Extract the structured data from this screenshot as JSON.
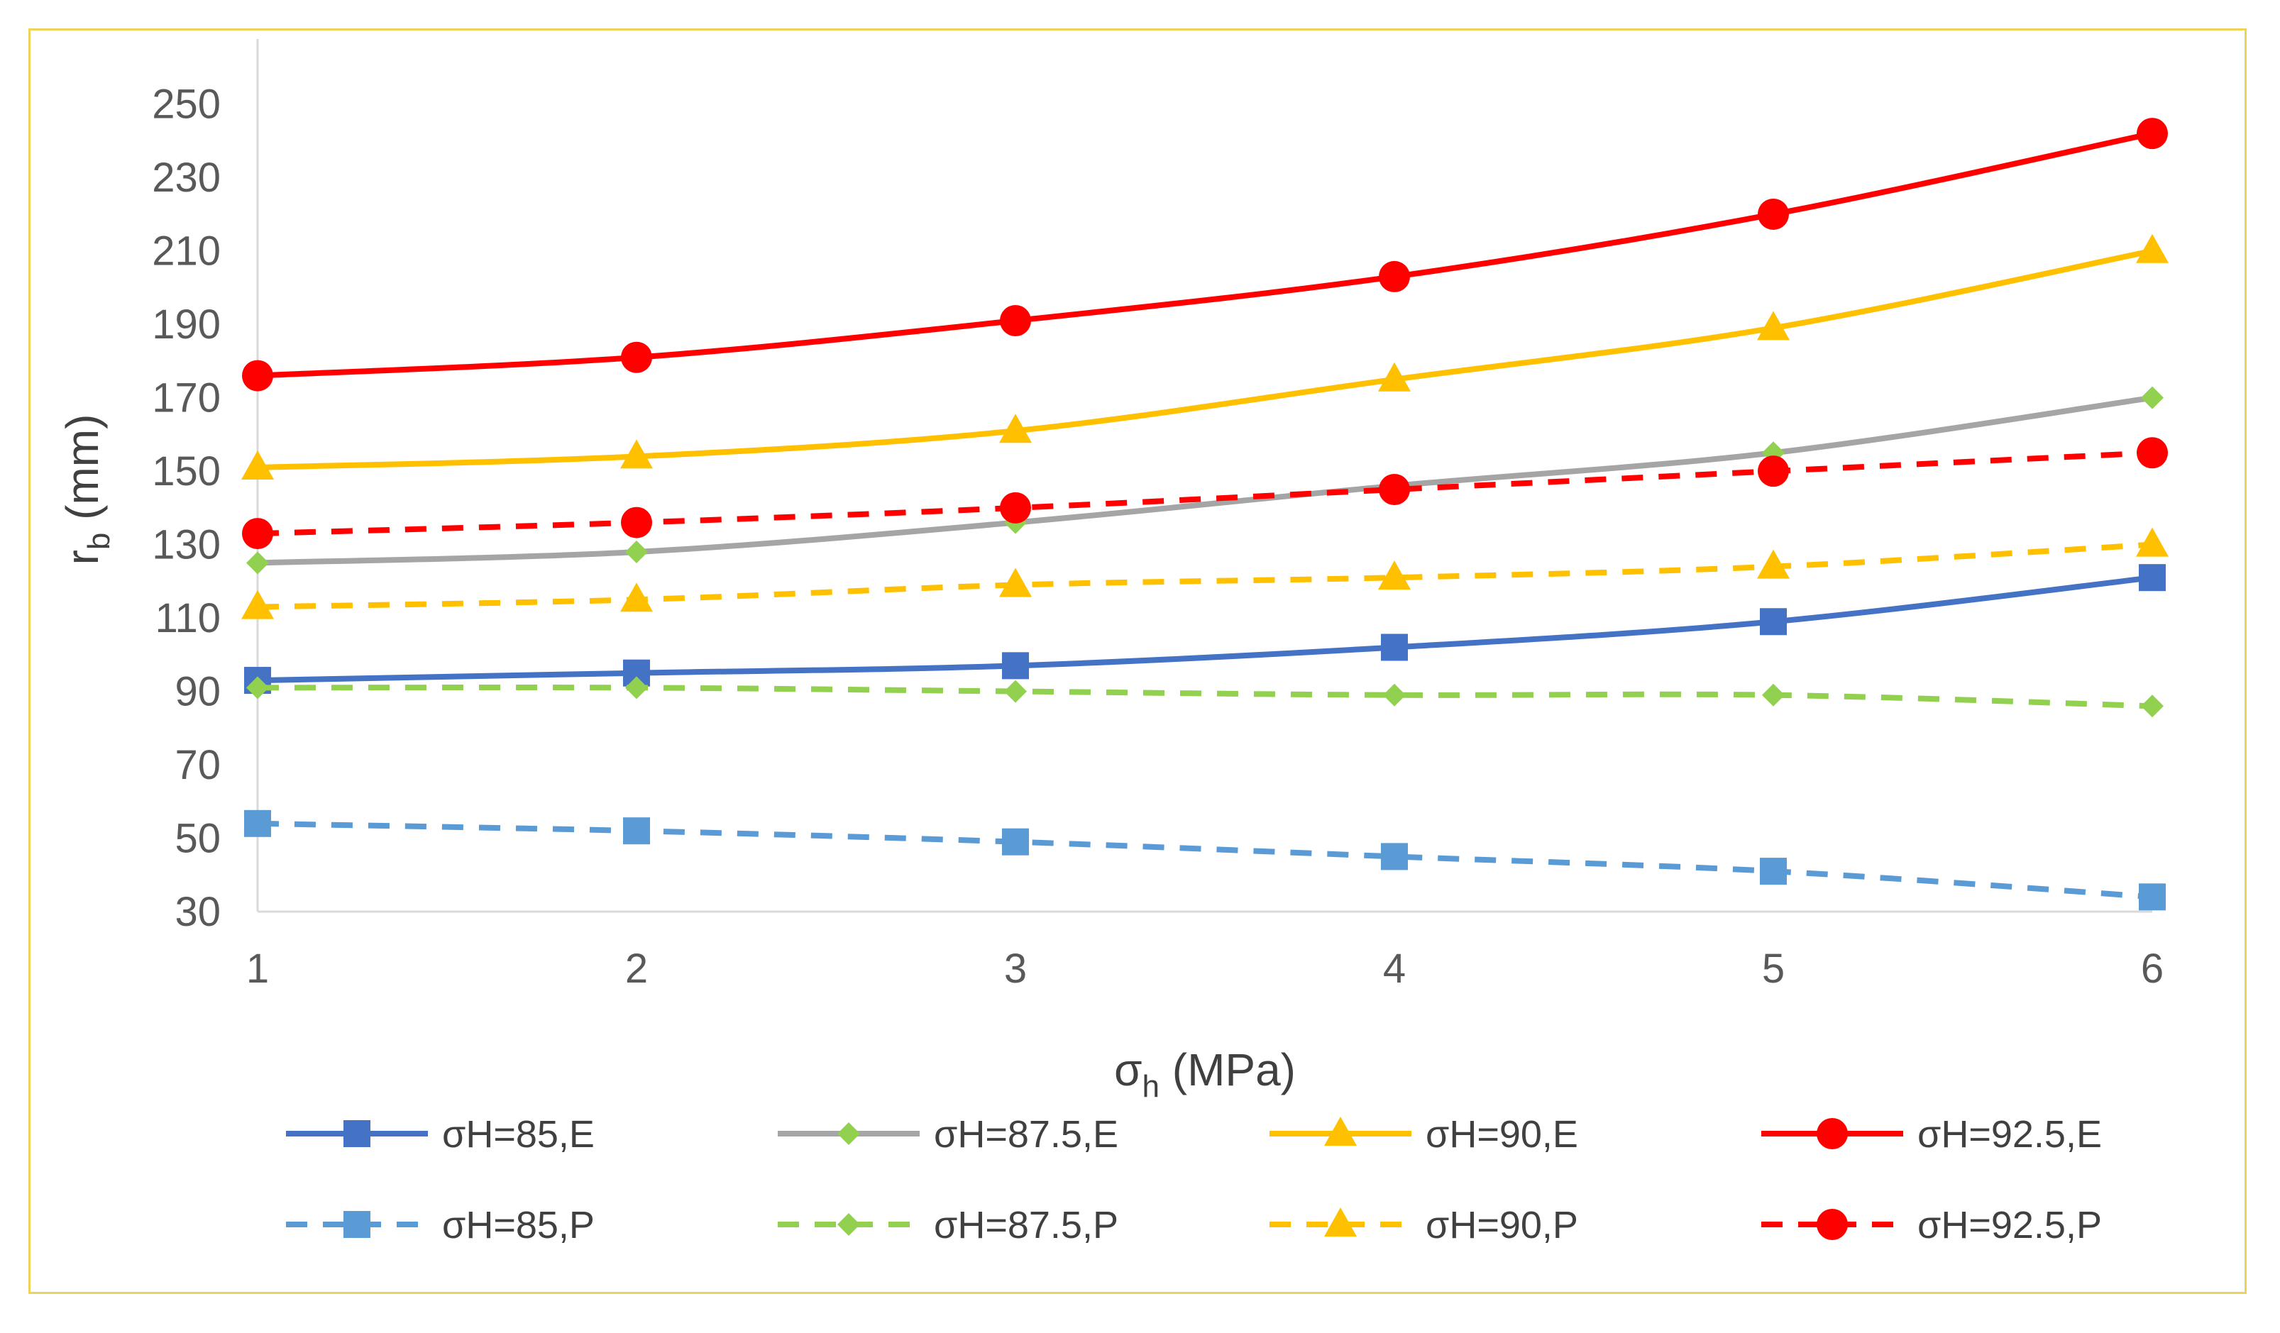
{
  "chart_data": {
    "type": "line",
    "title": "",
    "xlabel": {
      "main": "σ",
      "sub": "h",
      "unit": " (MPa)"
    },
    "ylabel": {
      "main": "r",
      "sub": "b",
      "unit": " (mm)"
    },
    "x": [
      1,
      2,
      3,
      4,
      5,
      6
    ],
    "xlim": [
      1,
      6
    ],
    "ylim": [
      30,
      260
    ],
    "yticks": [
      30,
      50,
      70,
      90,
      110,
      130,
      150,
      170,
      190,
      210,
      230,
      250
    ],
    "grid": false,
    "legend_position": "bottom",
    "series": [
      {
        "name": "σH=85,E",
        "values": [
          93,
          95,
          97,
          102,
          109,
          121
        ],
        "color": "#4472c4",
        "dash": "solid",
        "marker": "square"
      },
      {
        "name": "σH=87.5,E",
        "values": [
          125,
          128,
          136,
          146,
          155,
          170
        ],
        "color": "#a5a5a5",
        "dash": "solid",
        "marker": "diamond",
        "marker_color": "#92d050"
      },
      {
        "name": "σH=90,E",
        "values": [
          151,
          154,
          161,
          175,
          189,
          210
        ],
        "color": "#ffc000",
        "dash": "solid",
        "marker": "triangle"
      },
      {
        "name": "σH=92.5,E",
        "values": [
          176,
          181,
          191,
          203,
          220,
          242
        ],
        "color": "#ff0000",
        "dash": "solid",
        "marker": "circle"
      },
      {
        "name": "σH=85,P",
        "values": [
          54,
          52,
          49,
          45,
          41,
          34
        ],
        "color": "#5b9bd5",
        "dash": "dashed",
        "marker": "square"
      },
      {
        "name": "σH=87.5,P",
        "values": [
          91,
          91,
          90,
          89,
          89,
          86
        ],
        "color": "#92d050",
        "dash": "dashed",
        "marker": "diamond"
      },
      {
        "name": "σH=90,P",
        "values": [
          113,
          115,
          119,
          121,
          124,
          130
        ],
        "color": "#ffc000",
        "dash": "dashed",
        "marker": "triangle"
      },
      {
        "name": "σH=92.5,P",
        "values": [
          133,
          136,
          140,
          145,
          150,
          155
        ],
        "color": "#ff0000",
        "dash": "dashed",
        "marker": "circle"
      }
    ]
  }
}
